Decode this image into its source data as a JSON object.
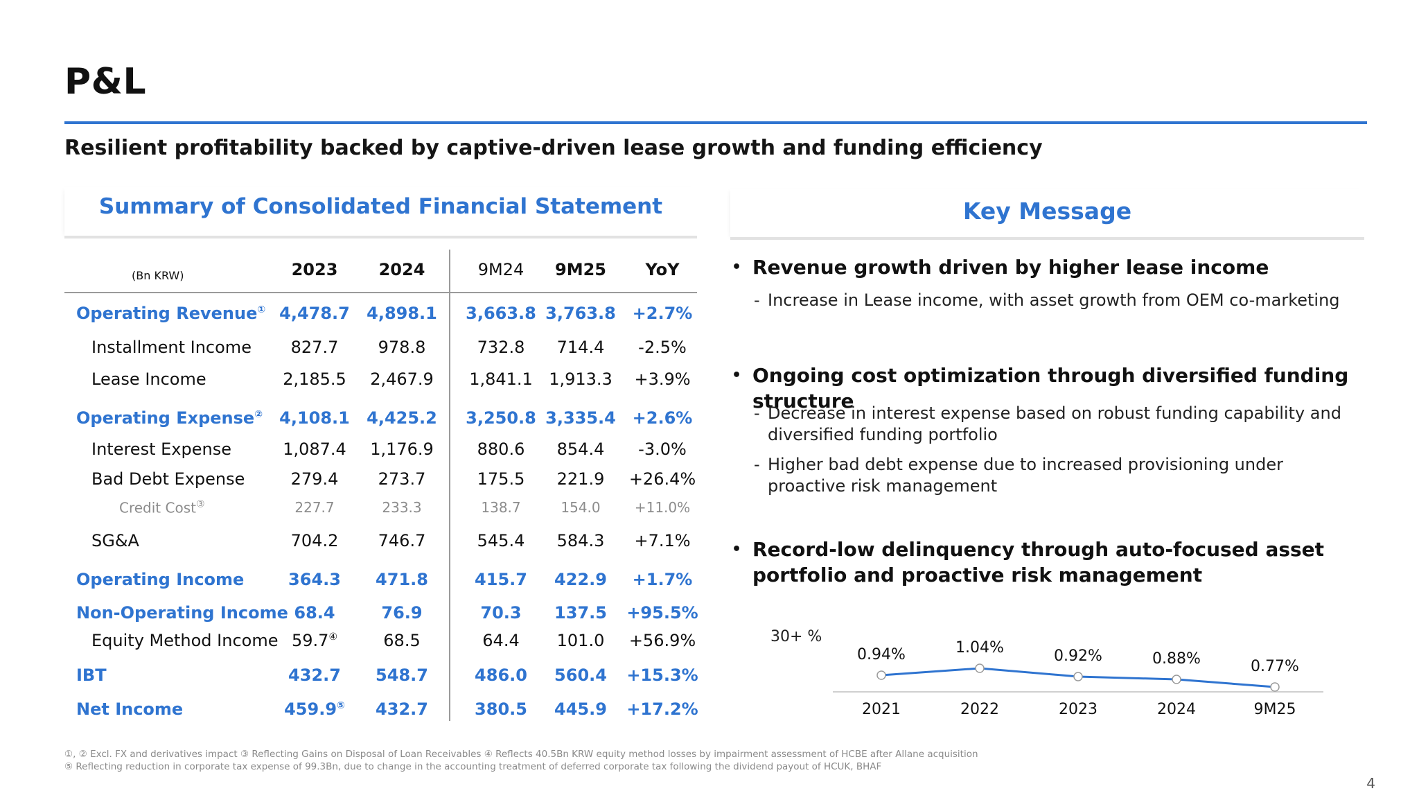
{
  "title": "P&L",
  "subtitle": "Resilient profitability backed by captive-driven lease growth and funding efficiency",
  "summary_title": "Summary of Consolidated Financial Statement",
  "key_title": "Key Message",
  "table": {
    "unit": "(Bn KRW)",
    "headers": [
      "2023",
      "2024",
      "9M24",
      "9M25",
      "YoY"
    ],
    "rows": [
      {
        "label": "Operating Revenue",
        "mark": "①",
        "cells": [
          "4,478.7",
          "4,898.1",
          "3,663.8",
          "3,763.8",
          "+2.7%"
        ]
      },
      {
        "label": "Installment Income",
        "cells": [
          "827.7",
          "978.8",
          "732.8",
          "714.4",
          "-2.5%"
        ]
      },
      {
        "label": "Lease Income",
        "cells": [
          "2,185.5",
          "2,467.9",
          "1,841.1",
          "1,913.3",
          "+3.9%"
        ]
      },
      {
        "label": "Operating Expense",
        "mark": "②",
        "cells": [
          "4,108.1",
          "4,425.2",
          "3,250.8",
          "3,335.4",
          "+2.6%"
        ]
      },
      {
        "label": "Interest Expense",
        "cells": [
          "1,087.4",
          "1,176.9",
          "880.6",
          "854.4",
          "-3.0%"
        ]
      },
      {
        "label": "Bad Debt Expense",
        "cells": [
          "279.4",
          "273.7",
          "175.5",
          "221.9",
          "+26.4%"
        ]
      },
      {
        "label": "Credit Cost",
        "mark": "③",
        "cells": [
          "227.7",
          "233.3",
          "138.7",
          "154.0",
          "+11.0%"
        ]
      },
      {
        "label": "SG&A",
        "cells": [
          "704.2",
          "746.7",
          "545.4",
          "584.3",
          "+7.1%"
        ]
      },
      {
        "label": "Operating Income",
        "cells": [
          "364.3",
          "471.8",
          "415.7",
          "422.9",
          "+1.7%"
        ]
      },
      {
        "label": "Non-Operating Income",
        "cells": [
          "68.4",
          "76.9",
          "70.3",
          "137.5",
          "+95.5%"
        ]
      },
      {
        "label": "Equity Method Income",
        "cells": [
          "59.7",
          "68.5",
          "64.4",
          "101.0",
          "+56.9%"
        ],
        "cell_mark": "④"
      },
      {
        "label": "IBT",
        "cells": [
          "432.7",
          "548.7",
          "486.0",
          "560.4",
          "+15.3%"
        ]
      },
      {
        "label": "Net Income",
        "cells": [
          "459.9",
          "432.7",
          "380.5",
          "445.9",
          "+17.2%"
        ],
        "cell_mark": "⑤"
      }
    ]
  },
  "key_messages": [
    {
      "title": "Revenue growth driven by higher lease income",
      "subs": [
        "Increase in Lease income, with asset growth from OEM co-marketing"
      ]
    },
    {
      "title": "Ongoing cost optimization through diversified funding structure",
      "subs": [
        "Decrease in interest expense based on robust funding capability and diversified funding portfolio",
        "Higher bad debt expense due to increased provisioning under proactive risk management"
      ]
    },
    {
      "title": "Record-low delinquency through auto-focused asset portfolio and proactive risk management",
      "subs": []
    }
  ],
  "chart_data": {
    "type": "line",
    "ylabel": "30+ %",
    "categories": [
      "2021",
      "2022",
      "2023",
      "2024",
      "9M25"
    ],
    "values": [
      0.94,
      1.04,
      0.92,
      0.88,
      0.77
    ],
    "labels": [
      "0.94%",
      "1.04%",
      "0.92%",
      "0.88%",
      "0.77%"
    ],
    "line_color": "#2f74d0",
    "grid": false
  },
  "footnotes": [
    "①, ② Excl. FX and derivatives impact ③ Reflecting Gains on Disposal of Loan Receivables ④ Reflects 40.5Bn KRW equity method losses by impairment assessment of HCBE after Allane acquisition",
    "⑤ Reflecting reduction in corporate tax expense of 99.3Bn, due to change in the accounting treatment of deferred corporate tax following the dividend payout of HCUK, BHAF"
  ],
  "page_number": "4",
  "colors": {
    "accent": "#2f74d0",
    "muted": "#8c8c8c",
    "rule": "#e2e2e2"
  }
}
